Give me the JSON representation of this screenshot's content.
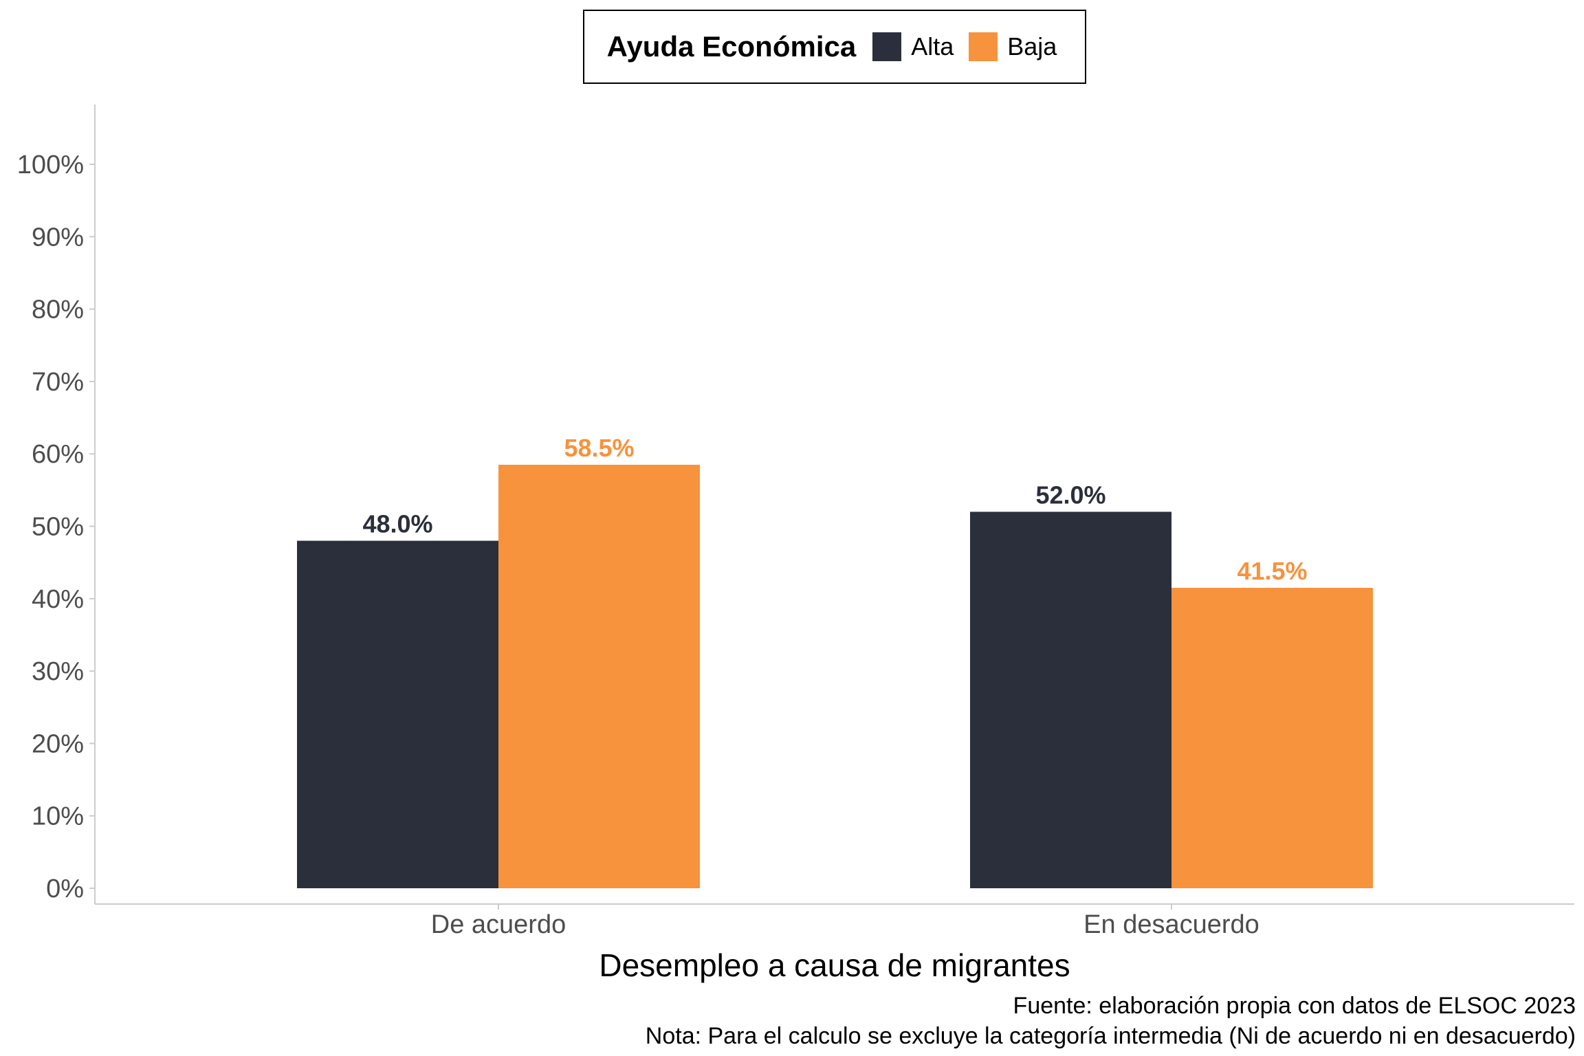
{
  "chart_data": {
    "type": "bar",
    "categories": [
      "De acuerdo",
      "En desacuerdo"
    ],
    "series": [
      {
        "name": "Alta",
        "values": [
          48.0,
          52.0
        ],
        "labels": [
          "48.0%",
          "52.0%"
        ],
        "color": "#2b2f3b"
      },
      {
        "name": "Baja",
        "values": [
          58.5,
          41.5
        ],
        "labels": [
          "58.5%",
          "41.5%"
        ],
        "color": "#f7923d"
      }
    ],
    "legend_title": "Ayuda Económica",
    "legend_position": "top",
    "xlabel": "Desempleo a causa de migrantes",
    "ylabel": "",
    "ylim": [
      0,
      105
    ],
    "yticks": [
      0,
      10,
      20,
      30,
      40,
      50,
      60,
      70,
      80,
      90,
      100
    ],
    "ytick_labels": [
      "0%",
      "10%",
      "20%",
      "30%",
      "40%",
      "50%",
      "60%",
      "70%",
      "80%",
      "90%",
      "100%"
    ],
    "grid": false
  },
  "caption": {
    "source": "Fuente: elaboración propia con datos de ELSOC 2023",
    "note": "Nota: Para el calculo se excluye la categoría intermedia (Ni de acuerdo ni en desacuerdo)"
  },
  "colors": {
    "axis": "#cccccc",
    "tick_text": "#4d4d4d"
  }
}
